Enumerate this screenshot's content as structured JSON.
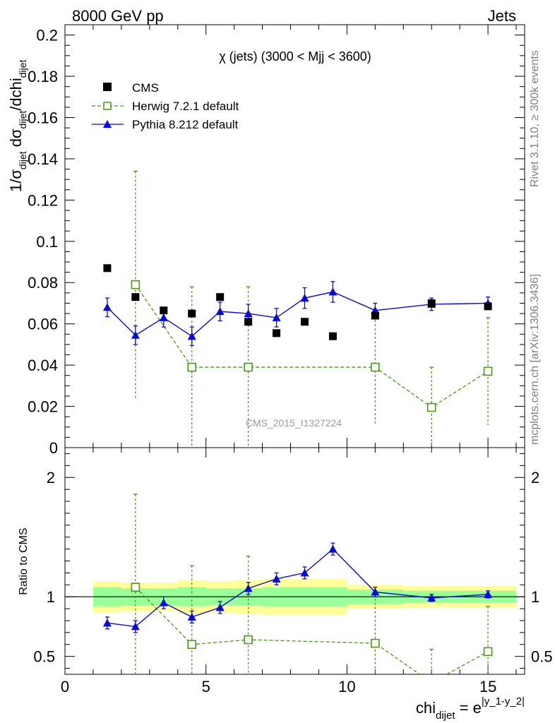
{
  "header": {
    "left": "8000 GeV pp",
    "right": "Jets"
  },
  "side_labels": {
    "rivet": "Rivet 3.1.10, ≥ 300k events",
    "mcplots": "mcplots.cern.ch [arXiv:1306.3436]"
  },
  "chart_data": {
    "type": "line",
    "title": "χ (jets) (3000 < Mjj < 3600)",
    "watermark": "CMS_2015_I1327224",
    "xlabel": {
      "main": "chi",
      "sub": "dijet",
      "eq": " = e",
      "sup": "|y_1-y_2|"
    },
    "ylabel": {
      "a": "1/σ",
      "a_sub": "dijet",
      "b": " dσ",
      "b_sub": "dijet",
      "c": "/dchi",
      "c_sub": "dijet"
    },
    "ratio_ylabel": "Ratio to CMS",
    "xlim": [
      0,
      16.3
    ],
    "ylim": [
      0,
      0.205
    ],
    "ratio_ylim": [
      0.35,
      2.25
    ],
    "grid": false,
    "legend_position": "top-left",
    "x_ticks": [
      "0",
      "5",
      "10",
      "15"
    ],
    "y_ticks": [
      "0",
      "0.02",
      "0.04",
      "0.06",
      "0.08",
      "0.1",
      "0.12",
      "0.14",
      "0.16",
      "0.18",
      "0.2"
    ],
    "ratio_y_ticks": [
      "0.5",
      "1",
      "2"
    ],
    "legend": [
      {
        "name": "CMS",
        "style": "marker"
      },
      {
        "name": "Herwig 7.2.1 default",
        "style": "herwig"
      },
      {
        "name": "Pythia 8.212 default",
        "style": "pythia"
      }
    ],
    "bins": [
      {
        "lo": 1,
        "hi": 2,
        "x": 1.5
      },
      {
        "lo": 2,
        "hi": 3,
        "x": 2.5
      },
      {
        "lo": 3,
        "hi": 4,
        "x": 3.5
      },
      {
        "lo": 4,
        "hi": 5,
        "x": 4.5
      },
      {
        "lo": 5,
        "hi": 6,
        "x": 5.5
      },
      {
        "lo": 6,
        "hi": 7,
        "x": 6.5
      },
      {
        "lo": 7,
        "hi": 8,
        "x": 7.5
      },
      {
        "lo": 8,
        "hi": 9,
        "x": 8.5
      },
      {
        "lo": 9,
        "hi": 10,
        "x": 9.5
      },
      {
        "lo": 10,
        "hi": 12,
        "x": 11
      },
      {
        "lo": 12,
        "hi": 14,
        "x": 13
      },
      {
        "lo": 14,
        "hi": 16,
        "x": 15
      }
    ],
    "series": [
      {
        "name": "CMS",
        "color": "#000000",
        "x": [
          1.5,
          2.5,
          3.5,
          4.5,
          5.5,
          6.5,
          7.5,
          8.5,
          9.5,
          11,
          13,
          15
        ],
        "y": [
          0.087,
          0.073,
          0.0665,
          0.065,
          0.073,
          0.061,
          0.0555,
          0.061,
          0.054,
          0.064,
          0.07,
          0.0685
        ]
      },
      {
        "name": "Herwig 7.2.1 default",
        "color": "#4a9a14",
        "x": [
          2.5,
          4.5,
          6.5,
          11,
          13,
          15
        ],
        "y": [
          0.079,
          0.039,
          0.039,
          0.039,
          0.0195,
          0.037
        ],
        "err_lo": [
          0.023,
          0.0,
          0.0,
          0.0115,
          0.0,
          0.011
        ],
        "err_hi": [
          0.134,
          0.078,
          0.078,
          0.066,
          0.039,
          0.063
        ],
        "ratio": [
          1.08,
          0.6,
          0.64,
          0.61,
          0.28,
          0.54
        ],
        "ratio_err_lo": [
          0.3,
          0.3,
          0.3,
          0.3,
          0.3,
          0.3
        ],
        "ratio_err_hi": [
          1.86,
          1.26,
          1.34,
          1.02,
          0.56,
          0.92
        ]
      },
      {
        "name": "Pythia 8.212 default",
        "color": "#0a0ad8",
        "x": [
          1.5,
          2.5,
          3.5,
          4.5,
          5.5,
          6.5,
          7.5,
          8.5,
          9.5,
          11,
          13,
          15
        ],
        "y": [
          0.068,
          0.0545,
          0.063,
          0.054,
          0.066,
          0.065,
          0.063,
          0.0725,
          0.0755,
          0.0665,
          0.0695,
          0.07
        ],
        "err": [
          0.0045,
          0.0045,
          0.0045,
          0.0045,
          0.0045,
          0.0045,
          0.0045,
          0.005,
          0.005,
          0.0035,
          0.003,
          0.003
        ],
        "ratio": [
          0.78,
          0.75,
          0.95,
          0.83,
          0.91,
          1.07,
          1.15,
          1.2,
          1.4,
          1.04,
          0.99,
          1.02
        ],
        "ratio_err": [
          0.05,
          0.05,
          0.05,
          0.05,
          0.05,
          0.05,
          0.05,
          0.05,
          0.05,
          0.04,
          0.03,
          0.03
        ]
      }
    ],
    "ratio_band": {
      "stat_lo": [
        0.92,
        0.93,
        0.93,
        0.92,
        0.93,
        0.93,
        0.92,
        0.92,
        0.92,
        0.94,
        0.95,
        0.95
      ],
      "stat_hi": [
        1.08,
        1.07,
        1.07,
        1.08,
        1.07,
        1.07,
        1.08,
        1.08,
        1.08,
        1.06,
        1.05,
        1.05
      ],
      "tot_lo": [
        0.87,
        0.88,
        0.88,
        0.86,
        0.87,
        0.86,
        0.85,
        0.85,
        0.85,
        0.9,
        0.91,
        0.91
      ],
      "tot_hi": [
        1.13,
        1.12,
        1.12,
        1.14,
        1.13,
        1.14,
        1.15,
        1.15,
        1.15,
        1.1,
        1.09,
        1.09
      ]
    }
  }
}
